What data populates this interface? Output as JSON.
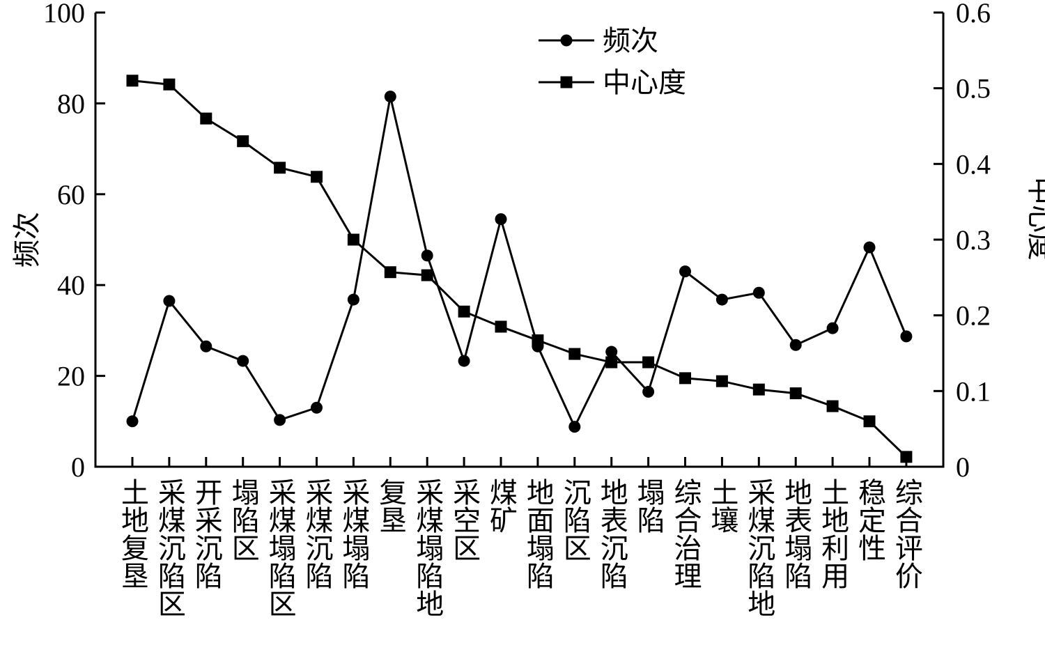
{
  "chart_data": {
    "type": "line",
    "categories": [
      "土地复垦",
      "采煤沉陷区",
      "开采沉陷",
      "塌陷区",
      "采煤塌陷区",
      "采煤沉陷",
      "采煤塌陷",
      "复垦",
      "采煤塌陷地",
      "采空区",
      "煤矿",
      "地面塌陷",
      "沉陷区",
      "地表沉陷",
      "塌陷",
      "综合治理",
      "土壤",
      "采煤沉陷地",
      "地表塌陷",
      "土地利用",
      "稳定性",
      "综合评价"
    ],
    "series": [
      {
        "name": "频次",
        "axis": "left",
        "marker": "circle",
        "values": [
          10,
          36.5,
          26.5,
          23.3,
          10.3,
          13,
          36.8,
          81.5,
          46.5,
          23.3,
          54.5,
          26.5,
          8.8,
          25.3,
          16.5,
          43,
          36.8,
          38.3,
          26.8,
          30.5,
          48.3,
          28.7
        ]
      },
      {
        "name": "中心度",
        "axis": "right",
        "marker": "square",
        "values": [
          0.51,
          0.505,
          0.46,
          0.43,
          0.395,
          0.383,
          0.3,
          0.257,
          0.253,
          0.205,
          0.185,
          0.167,
          0.149,
          0.138,
          0.138,
          0.117,
          0.113,
          0.102,
          0.097,
          0.08,
          0.06,
          0.013
        ]
      }
    ],
    "yleft": {
      "label": "频次",
      "range": [
        0,
        100
      ],
      "ticks": [
        "0",
        "20",
        "40",
        "60",
        "80",
        "100"
      ]
    },
    "yright": {
      "label": "中心度",
      "range": [
        0,
        0.6
      ],
      "ticks": [
        "0",
        "0.1",
        "0.2",
        "0.3",
        "0.4",
        "0.5",
        "0.6"
      ]
    },
    "legend": {
      "placement": "top-center",
      "entries": [
        "频次",
        "中心度"
      ]
    },
    "grid": false,
    "colors": {
      "line": "#000000"
    }
  }
}
